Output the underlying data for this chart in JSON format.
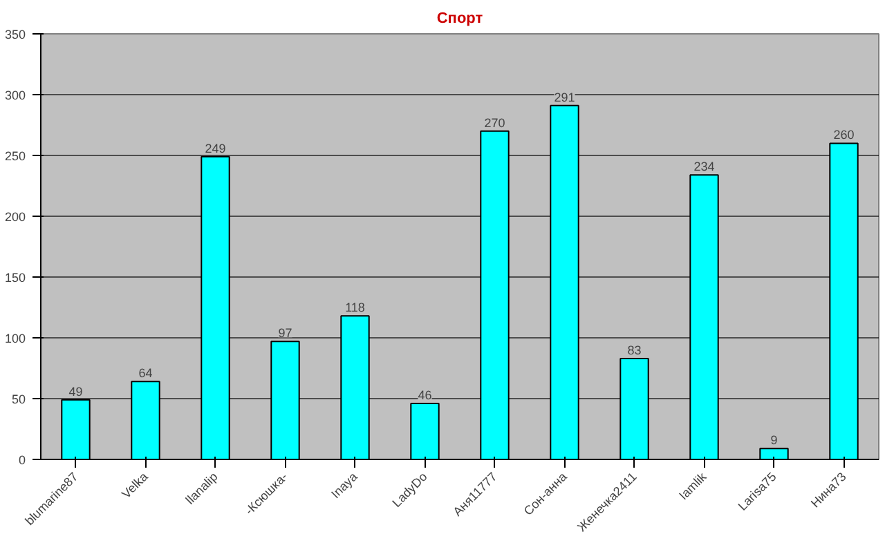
{
  "chart_data": {
    "type": "bar",
    "title": "Спорт",
    "categories": [
      "blumarine87",
      "Velka",
      "llanalip",
      "-Ксюшка-",
      "Inaya",
      "LadyDo",
      "Aня11777",
      "Сон-анна",
      "Женечка2411",
      "Iamlik",
      "Larisa75",
      "Нина73"
    ],
    "values": [
      49,
      64,
      249,
      97,
      118,
      46,
      270,
      291,
      83,
      234,
      9,
      260
    ],
    "color": "#00ffff",
    "data_labels": true,
    "ylim": [
      0,
      350
    ],
    "yticks": [
      0,
      50,
      100,
      150,
      200,
      250,
      300,
      350
    ],
    "grid": "y"
  }
}
